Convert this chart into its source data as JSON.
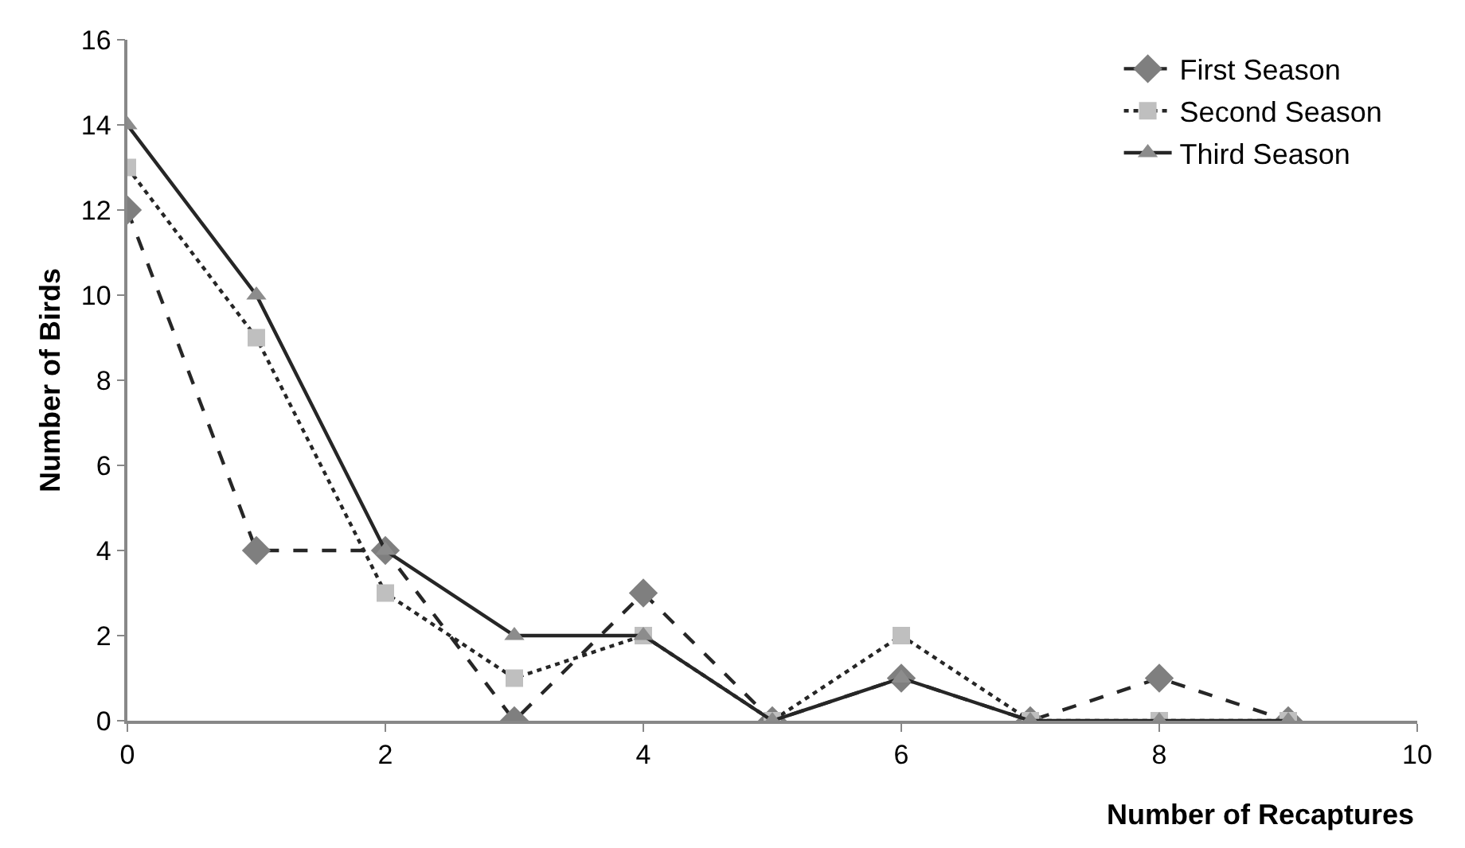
{
  "chart_data": {
    "type": "line",
    "xlabel": "Number of Recaptures",
    "ylabel": "Number of Birds",
    "x": [
      0,
      1,
      2,
      3,
      4,
      5,
      6,
      7,
      8,
      9
    ],
    "series": [
      {
        "name": "First Season",
        "color": "#7f7f7f",
        "marker": "diamond",
        "line_style": "dashed",
        "values": [
          12,
          4,
          4,
          0,
          3,
          0,
          1,
          0,
          1,
          0
        ]
      },
      {
        "name": "Second Season",
        "color": "#bfbfbf",
        "marker": "square",
        "line_style": "dotted",
        "values": [
          13,
          9,
          3,
          1,
          2,
          0,
          2,
          0,
          0,
          0
        ]
      },
      {
        "name": "Third Season",
        "color": "#8c8c8c",
        "marker": "triangle",
        "line_style": "solid",
        "values": [
          14,
          10,
          4,
          2,
          2,
          0,
          1,
          0,
          0,
          0
        ]
      }
    ],
    "xlim": [
      0,
      10
    ],
    "xticks": [
      0,
      2,
      4,
      6,
      8,
      10
    ],
    "ylim": [
      0,
      16
    ],
    "yticks": [
      0,
      2,
      4,
      6,
      8,
      10,
      12,
      14,
      16
    ],
    "grid": false,
    "legend": "top right"
  }
}
